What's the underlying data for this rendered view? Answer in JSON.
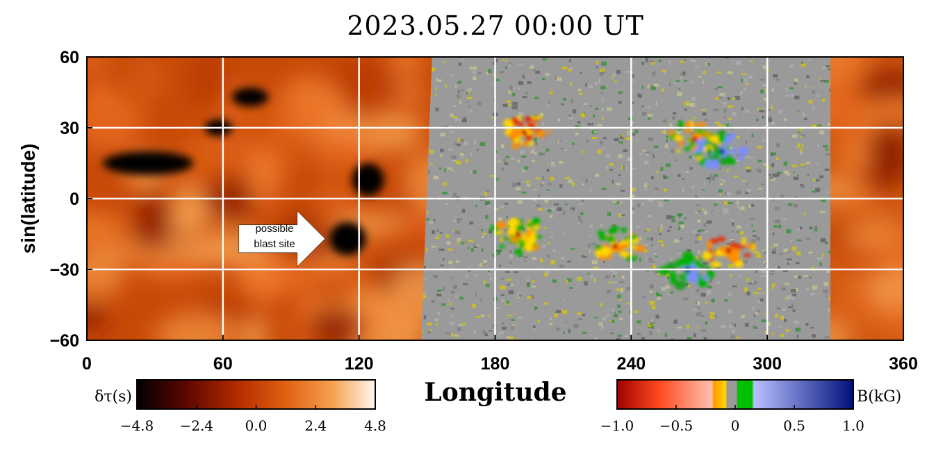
{
  "chart_data": {
    "type": "heatmap",
    "title": "2023.05.27 00:00 UT",
    "xlabel": "Longitude",
    "ylabel": "sin(latitude)",
    "xlim": [
      0,
      360
    ],
    "ylim": [
      -60,
      60
    ],
    "x_ticks": [
      "0",
      "60",
      "120",
      "180",
      "240",
      "300",
      "360"
    ],
    "y_ticks": [
      "60",
      "30",
      "0",
      "−30",
      "−60"
    ],
    "x_tick_values": [
      0,
      60,
      120,
      180,
      240,
      300,
      360
    ],
    "y_tick_values": [
      60,
      30,
      0,
      -30,
      -60
    ],
    "grid": true,
    "panels": [
      {
        "name": "far-side helioseismic map",
        "lon_range": [
          0,
          150
        ]
      },
      {
        "name": "near-side magnetogram",
        "lon_range": [
          150,
          330
        ]
      },
      {
        "name": "far-side helioseismic map",
        "lon_range": [
          330,
          360
        ]
      }
    ],
    "dark_regions": [
      {
        "lon": 27,
        "lat": 15,
        "w": 40,
        "h": 10
      },
      {
        "lon": 115,
        "lat": -17,
        "w": 16,
        "h": 14
      },
      {
        "lon": 124,
        "lat": 8,
        "w": 14,
        "h": 14
      },
      {
        "lon": 58,
        "lat": 30,
        "w": 12,
        "h": 7
      },
      {
        "lon": 72,
        "lat": 43,
        "w": 16,
        "h": 8
      }
    ],
    "active_regions": [
      {
        "lon": 193,
        "lat": 28,
        "polarity": "negative"
      },
      {
        "lon": 268,
        "lat": 25,
        "polarity": "mixed"
      },
      {
        "lon": 280,
        "lat": 20,
        "polarity": "positive"
      },
      {
        "lon": 190,
        "lat": -15,
        "polarity": "mixed"
      },
      {
        "lon": 233,
        "lat": -20,
        "polarity": "mixed"
      },
      {
        "lon": 265,
        "lat": -30,
        "polarity": "positive"
      },
      {
        "lon": 283,
        "lat": -22,
        "polarity": "negative"
      }
    ],
    "annotation": {
      "lines": [
        "possible",
        "blast site"
      ],
      "arrow_lon": [
        67,
        105
      ],
      "arrow_lat": -17
    },
    "colorbars": [
      {
        "label": "δτ(s)",
        "range": [
          -4.8,
          4.8
        ],
        "ticks": [
          "−4.8",
          "−2.4",
          "0.0",
          "2.4",
          "4.8"
        ],
        "colors": [
          "#000000",
          "#5a0600",
          "#b32a00",
          "#e06010",
          "#f5a050",
          "#fff8f0"
        ]
      },
      {
        "label": "B(kG)",
        "range": [
          -1.0,
          1.0
        ],
        "ticks": [
          "−1.0",
          "−0.5",
          "0",
          "0.5",
          "1.0"
        ],
        "colors": [
          "#a00000",
          "#ff4a20",
          "#ffc0b0",
          "#ffd800",
          "#9a9a9a",
          "#00c000",
          "#b8c0ff",
          "#00107a"
        ]
      }
    ]
  }
}
